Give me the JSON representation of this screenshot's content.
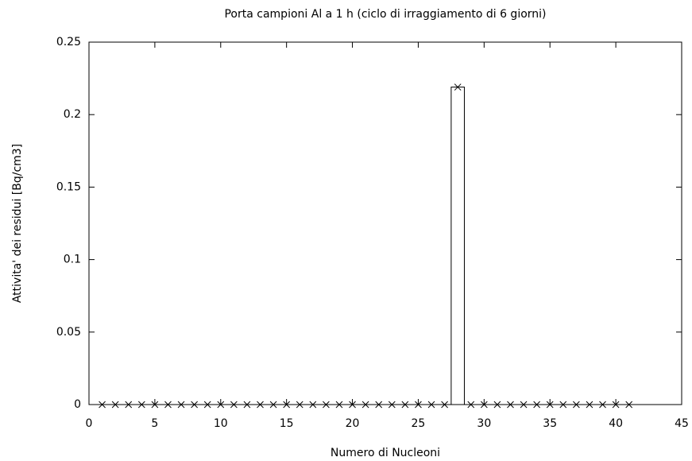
{
  "chart_data": {
    "type": "bar",
    "title": "Porta campioni Al a 1 h  (ciclo di irraggiamento di 6 giorni)",
    "xlabel": "Numero di Nucleoni",
    "ylabel": "Attivita' dei residui [Bq/cm3]",
    "x": [
      1,
      2,
      3,
      4,
      5,
      6,
      7,
      8,
      9,
      10,
      11,
      12,
      13,
      14,
      15,
      16,
      17,
      18,
      19,
      20,
      21,
      22,
      23,
      24,
      25,
      26,
      27,
      28,
      29,
      30,
      31,
      32,
      33,
      34,
      35,
      36,
      37,
      38,
      39,
      40,
      41
    ],
    "values": [
      0,
      0,
      0,
      0,
      0,
      0,
      0,
      0,
      0,
      0,
      0,
      0,
      0,
      0,
      0,
      0,
      0,
      0,
      0,
      0,
      0,
      0,
      0,
      0,
      0,
      0,
      0,
      0.219,
      0,
      0,
      0,
      0,
      0,
      0,
      0,
      0,
      0,
      0,
      0,
      0,
      0
    ],
    "color": "#000000",
    "xlim": [
      0,
      45
    ],
    "xticks": [
      0,
      5,
      10,
      15,
      20,
      25,
      30,
      35,
      40,
      45
    ],
    "ylim": [
      0,
      0.25
    ],
    "yticks": [
      0,
      0.05,
      0.1,
      0.15,
      0.2,
      0.25
    ]
  }
}
